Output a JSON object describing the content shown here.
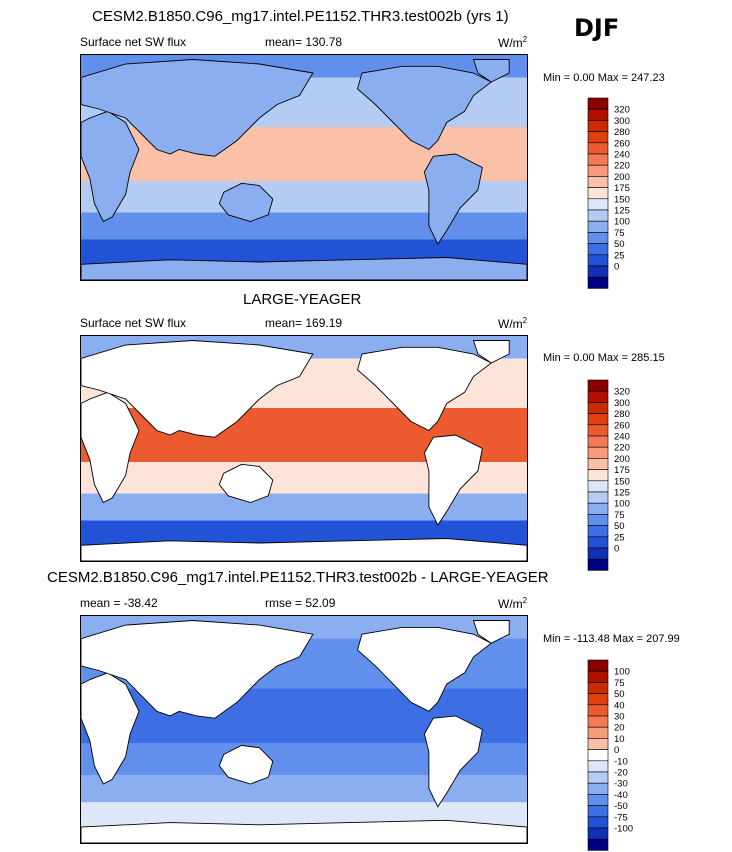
{
  "season": "DJF",
  "panels": [
    {
      "title": "CESM2.B1850.C96_mg17.intel.PE1152.THR3.test002b (yrs 1)",
      "variable": "Surface net SW flux",
      "stat": "mean= 130.78",
      "units": "W/m",
      "units_sup": "2",
      "minmax": "Min =   0.00 Max = 247.23",
      "colorbar": {
        "labels": [
          "320",
          "300",
          "280",
          "260",
          "240",
          "220",
          "200",
          "175",
          "150",
          "125",
          "100",
          "75",
          "50",
          "25",
          "0"
        ],
        "colors": [
          "#8b0000",
          "#b01000",
          "#cc2a00",
          "#e04010",
          "#ec5a30",
          "#f37a55",
          "#f79a7a",
          "#fbc0a8",
          "#fde4d8",
          "#dce8f8",
          "#b4ccf4",
          "#8aaef0",
          "#6090ec",
          "#3d6ee4",
          "#2252d6",
          "#1030b8",
          "#000080"
        ]
      },
      "field_colors": {
        "equator": "#fbc0a8",
        "mid": "#b4ccf4",
        "high": "#6090ec",
        "pole": "#2252d6",
        "land": "#8aaef0"
      }
    },
    {
      "title": "LARGE-YEAGER",
      "variable": "Surface net SW flux",
      "stat": "mean= 169.19",
      "units": "W/m",
      "units_sup": "2",
      "minmax": "Min =   0.00 Max = 285.15",
      "colorbar": {
        "labels": [
          "320",
          "300",
          "280",
          "260",
          "240",
          "220",
          "200",
          "175",
          "150",
          "125",
          "100",
          "75",
          "50",
          "25",
          "0"
        ],
        "colors": [
          "#8b0000",
          "#b01000",
          "#cc2a00",
          "#e04010",
          "#ec5a30",
          "#f37a55",
          "#f79a7a",
          "#fbc0a8",
          "#fde4d8",
          "#dce8f8",
          "#b4ccf4",
          "#8aaef0",
          "#6090ec",
          "#3d6ee4",
          "#2252d6",
          "#1030b8",
          "#000080"
        ]
      },
      "field_colors": {
        "equator": "#ec5a30",
        "mid": "#fde4d8",
        "high": "#8aaef0",
        "pole": "#2252d6",
        "land": "#ffffff"
      }
    },
    {
      "title": "CESM2.B1850.C96_mg17.intel.PE1152.THR3.test002b - LARGE-YEAGER",
      "variable": "mean = -38.42",
      "stat": "rmse =  52.09",
      "units": "W/m",
      "units_sup": "2",
      "minmax": "Min = -113.48 Max = 207.99",
      "colorbar": {
        "labels": [
          "100",
          "75",
          "50",
          "40",
          "30",
          "20",
          "10",
          "0",
          "-10",
          "-20",
          "-30",
          "-40",
          "-50",
          "-75",
          "-100"
        ],
        "colors": [
          "#8b0000",
          "#b01000",
          "#cc2a00",
          "#e04010",
          "#ec5a30",
          "#f37a55",
          "#f79a7a",
          "#fbc0a8",
          "#ffffff",
          "#dce8f8",
          "#b4ccf4",
          "#8aaef0",
          "#6090ec",
          "#3d6ee4",
          "#2252d6",
          "#1030b8",
          "#000080"
        ]
      },
      "field_colors": {
        "equator": "#3d6ee4",
        "mid": "#6090ec",
        "high": "#8aaef0",
        "pole": "#dce8f8",
        "land": "#ffffff"
      }
    }
  ]
}
